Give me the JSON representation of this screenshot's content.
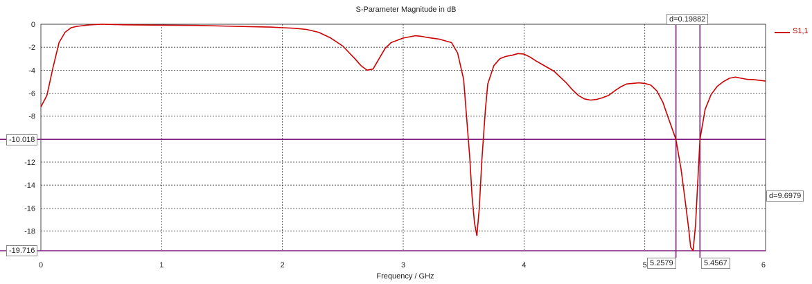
{
  "chart_data": {
    "type": "line",
    "title": "S-Parameter Magnitude in dB",
    "xlabel": "Frequency / GHz",
    "ylabel": "",
    "xlim": [
      0,
      6
    ],
    "ylim": [
      -19.716,
      0
    ],
    "x_ticks": [
      "0",
      "1",
      "2",
      "3",
      "4",
      "5",
      "6"
    ],
    "y_ticks": [
      "0",
      "-2",
      "-4",
      "-6",
      "-8",
      "-12",
      "-14",
      "-16",
      "-18"
    ],
    "grid": true,
    "legend_position": "top-right",
    "series": [
      {
        "name": "S1,1",
        "color": "#cc0000",
        "x": [
          0.0,
          0.05,
          0.1,
          0.15,
          0.2,
          0.25,
          0.3,
          0.4,
          0.5,
          0.7,
          1.0,
          1.3,
          1.6,
          1.9,
          2.0,
          2.1,
          2.2,
          2.3,
          2.4,
          2.5,
          2.6,
          2.65,
          2.7,
          2.75,
          2.8,
          2.85,
          2.9,
          3.0,
          3.1,
          3.15,
          3.2,
          3.3,
          3.4,
          3.45,
          3.5,
          3.52,
          3.55,
          3.57,
          3.59,
          3.61,
          3.63,
          3.65,
          3.68,
          3.7,
          3.75,
          3.8,
          3.85,
          3.9,
          3.95,
          4.0,
          4.05,
          4.1,
          4.15,
          4.2,
          4.25,
          4.3,
          4.35,
          4.4,
          4.45,
          4.5,
          4.55,
          4.6,
          4.65,
          4.7,
          4.75,
          4.8,
          4.85,
          4.9,
          4.95,
          5.0,
          5.05,
          5.1,
          5.15,
          5.2,
          5.2579,
          5.3,
          5.33,
          5.36,
          5.38,
          5.4,
          5.42,
          5.4567,
          5.5,
          5.55,
          5.6,
          5.65,
          5.7,
          5.75,
          5.8,
          5.85,
          5.9,
          5.95,
          6.0
        ],
        "values": [
          -7.2,
          -6.2,
          -3.8,
          -1.6,
          -0.7,
          -0.3,
          -0.18,
          -0.06,
          0.0,
          -0.05,
          -0.08,
          -0.1,
          -0.18,
          -0.25,
          -0.3,
          -0.35,
          -0.45,
          -0.7,
          -1.2,
          -1.9,
          -3.0,
          -3.6,
          -4.0,
          -3.9,
          -3.0,
          -2.1,
          -1.6,
          -1.2,
          -1.0,
          -1.05,
          -1.15,
          -1.3,
          -1.6,
          -2.5,
          -4.8,
          -7.5,
          -11.5,
          -15.0,
          -17.3,
          -18.4,
          -16.0,
          -12.0,
          -7.5,
          -5.2,
          -3.6,
          -3.0,
          -2.8,
          -2.7,
          -2.55,
          -2.6,
          -2.85,
          -3.2,
          -3.5,
          -3.8,
          -4.1,
          -4.6,
          -5.1,
          -5.7,
          -6.2,
          -6.5,
          -6.6,
          -6.55,
          -6.4,
          -6.2,
          -5.8,
          -5.45,
          -5.2,
          -5.15,
          -5.1,
          -5.15,
          -5.3,
          -5.8,
          -6.8,
          -8.3,
          -10.02,
          -12.6,
          -15.0,
          -17.5,
          -19.4,
          -19.716,
          -17.5,
          -10.02,
          -7.4,
          -6.1,
          -5.4,
          -5.0,
          -4.7,
          -4.6,
          -4.7,
          -4.8,
          -4.82,
          -4.88,
          -4.95
        ]
      }
    ],
    "markers": {
      "h_lines": [
        {
          "y": -10.018,
          "label": "-10.018"
        },
        {
          "y": -19.716,
          "label": "-19.716"
        }
      ],
      "v_lines": [
        {
          "x": 5.2579,
          "label": "5.2579"
        },
        {
          "x": 5.4567,
          "label": "5.4567"
        }
      ],
      "delta_x_label": "d=0.19882",
      "delta_y_label": "d=9.6979",
      "marker_color": "#7b1f7b"
    }
  }
}
